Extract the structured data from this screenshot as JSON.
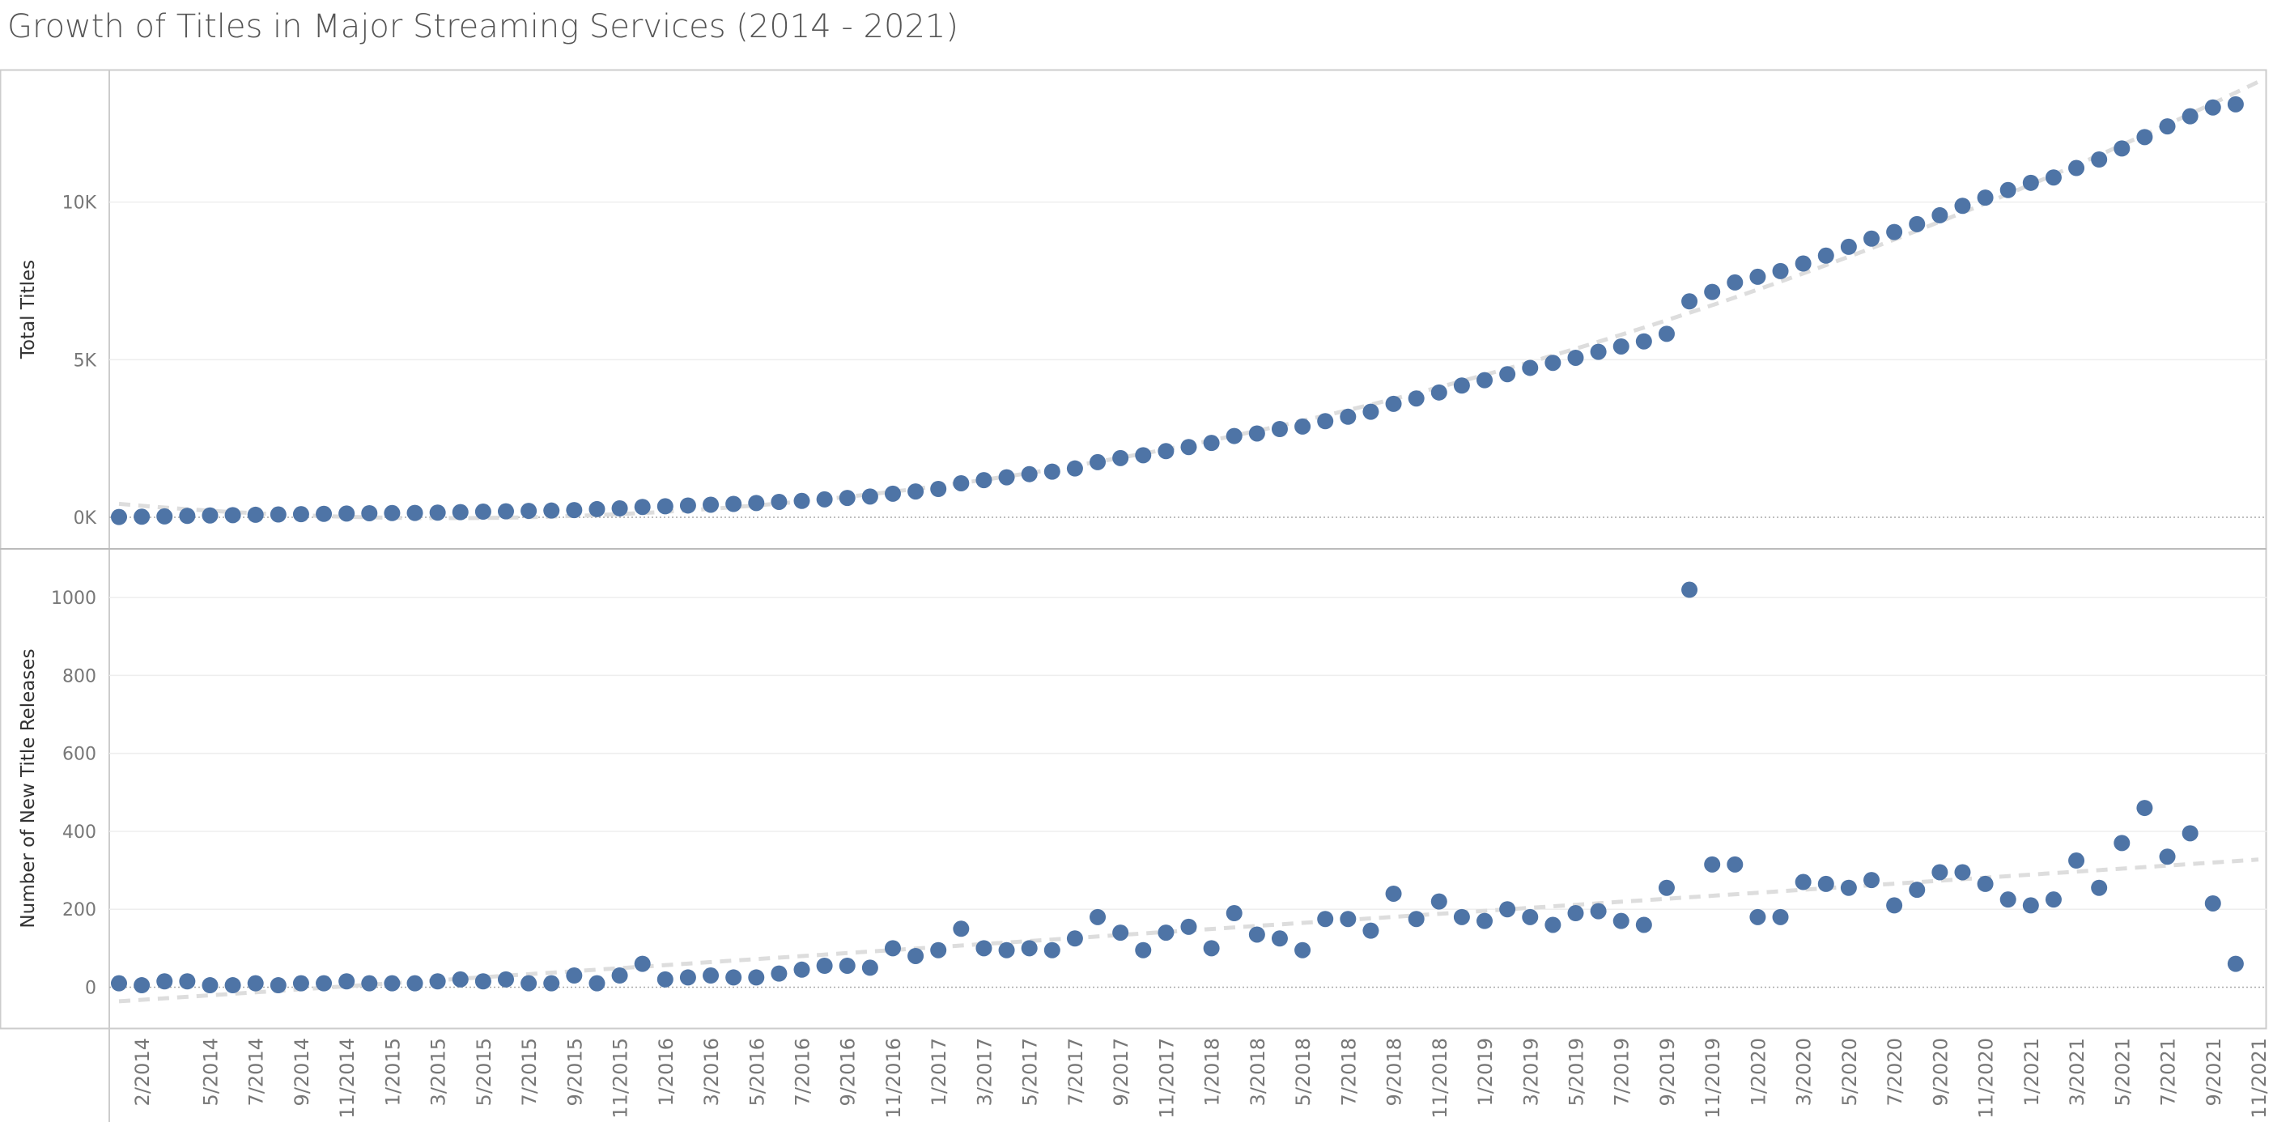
{
  "title": "Growth of Titles in Major Streaming Services (2014 - 2021)",
  "colors": {
    "marker": "#4e74a6",
    "trend": "#dddddd",
    "grid": "#eeeeee",
    "axis": "#cccccc"
  },
  "chart_data": {
    "type": "scatter",
    "title": "Growth of Titles in Major Streaming Services (2014 - 2021)",
    "x": [
      "1/2014",
      "2/2014",
      "3/2014",
      "4/2014",
      "5/2014",
      "6/2014",
      "7/2014",
      "8/2014",
      "9/2014",
      "10/2014",
      "11/2014",
      "12/2014",
      "1/2015",
      "2/2015",
      "3/2015",
      "4/2015",
      "5/2015",
      "6/2015",
      "7/2015",
      "8/2015",
      "9/2015",
      "10/2015",
      "11/2015",
      "12/2015",
      "1/2016",
      "2/2016",
      "3/2016",
      "4/2016",
      "5/2016",
      "6/2016",
      "7/2016",
      "8/2016",
      "9/2016",
      "10/2016",
      "11/2016",
      "12/2016",
      "1/2017",
      "2/2017",
      "3/2017",
      "4/2017",
      "5/2017",
      "6/2017",
      "7/2017",
      "8/2017",
      "9/2017",
      "10/2017",
      "11/2017",
      "12/2017",
      "1/2018",
      "2/2018",
      "3/2018",
      "4/2018",
      "5/2018",
      "6/2018",
      "7/2018",
      "8/2018",
      "9/2018",
      "10/2018",
      "11/2018",
      "12/2018",
      "1/2019",
      "2/2019",
      "3/2019",
      "4/2019",
      "5/2019",
      "6/2019",
      "7/2019",
      "8/2019",
      "9/2019",
      "10/2019",
      "11/2019",
      "12/2019",
      "1/2020",
      "2/2020",
      "3/2020",
      "4/2020",
      "5/2020",
      "6/2020",
      "7/2020",
      "8/2020",
      "9/2020",
      "10/2020",
      "11/2020",
      "12/2020",
      "1/2021",
      "2/2021",
      "3/2021",
      "4/2021",
      "5/2021",
      "6/2021",
      "7/2021",
      "8/2021",
      "9/2021",
      "10/2021",
      "11/2021"
    ],
    "x_tick_labels": [
      "2/2014",
      "5/2014",
      "7/2014",
      "9/2014",
      "11/2014",
      "1/2015",
      "3/2015",
      "5/2015",
      "7/2015",
      "9/2015",
      "11/2015",
      "1/2016",
      "3/2016",
      "5/2016",
      "7/2016",
      "9/2016",
      "11/2016",
      "1/2017",
      "3/2017",
      "5/2017",
      "7/2017",
      "9/2017",
      "11/2017",
      "1/2018",
      "3/2018",
      "5/2018",
      "7/2018",
      "9/2018",
      "11/2018",
      "1/2019",
      "3/2019",
      "5/2019",
      "7/2019",
      "9/2019",
      "11/2019",
      "1/2020",
      "3/2020",
      "5/2020",
      "7/2020",
      "9/2020",
      "11/2020",
      "1/2021",
      "3/2021",
      "5/2021",
      "7/2021",
      "9/2021",
      "11/2021"
    ],
    "panels": [
      {
        "ylabel": "Total Titles",
        "yticks": [
          0,
          5000,
          10000
        ],
        "ytick_labels": [
          "0K",
          "5K",
          "10K"
        ],
        "ylim": [
          -1000,
          14200
        ],
        "values": [
          10,
          20,
          30,
          45,
          60,
          70,
          80,
          90,
          100,
          110,
          120,
          130,
          135,
          140,
          150,
          165,
          180,
          190,
          205,
          215,
          230,
          260,
          285,
          330,
          350,
          375,
          400,
          425,
          455,
          490,
          520,
          570,
          615,
          660,
          750,
          820,
          900,
          1080,
          1180,
          1270,
          1370,
          1450,
          1550,
          1750,
          1880,
          1970,
          2100,
          2230,
          2360,
          2580,
          2660,
          2800,
          2880,
          3050,
          3190,
          3350,
          3600,
          3770,
          3960,
          4180,
          4350,
          4540,
          4740,
          4900,
          5060,
          5250,
          5420,
          5580,
          5820,
          6850,
          7150,
          7450,
          7630,
          7810,
          8050,
          8300,
          8580,
          8840,
          9050,
          9300,
          9580,
          9880,
          10140,
          10380,
          10610,
          10780,
          11080,
          11350,
          11700,
          12060,
          12400,
          12720,
          13000,
          13100
        ]
      },
      {
        "ylabel": "Number of New Title Releases",
        "yticks": [
          0,
          200,
          400,
          600,
          800,
          1000
        ],
        "ytick_labels": [
          "0",
          "200",
          "400",
          "600",
          "800",
          "1000"
        ],
        "ylim": [
          -105,
          1125
        ],
        "values": [
          10,
          5,
          15,
          15,
          5,
          5,
          10,
          5,
          10,
          10,
          15,
          10,
          10,
          10,
          15,
          20,
          15,
          20,
          10,
          10,
          30,
          10,
          30,
          60,
          20,
          25,
          30,
          25,
          25,
          35,
          45,
          55,
          55,
          50,
          100,
          80,
          95,
          150,
          100,
          95,
          100,
          95,
          125,
          180,
          140,
          95,
          140,
          155,
          100,
          190,
          135,
          125,
          95,
          175,
          175,
          145,
          240,
          175,
          220,
          180,
          170,
          200,
          180,
          160,
          190,
          195,
          170,
          160,
          255,
          1020,
          315,
          315,
          180,
          180,
          270,
          265,
          255,
          275,
          210,
          250,
          295,
          295,
          265,
          225,
          210,
          225,
          325,
          255,
          370,
          460,
          335,
          395,
          215,
          60
        ]
      }
    ]
  }
}
